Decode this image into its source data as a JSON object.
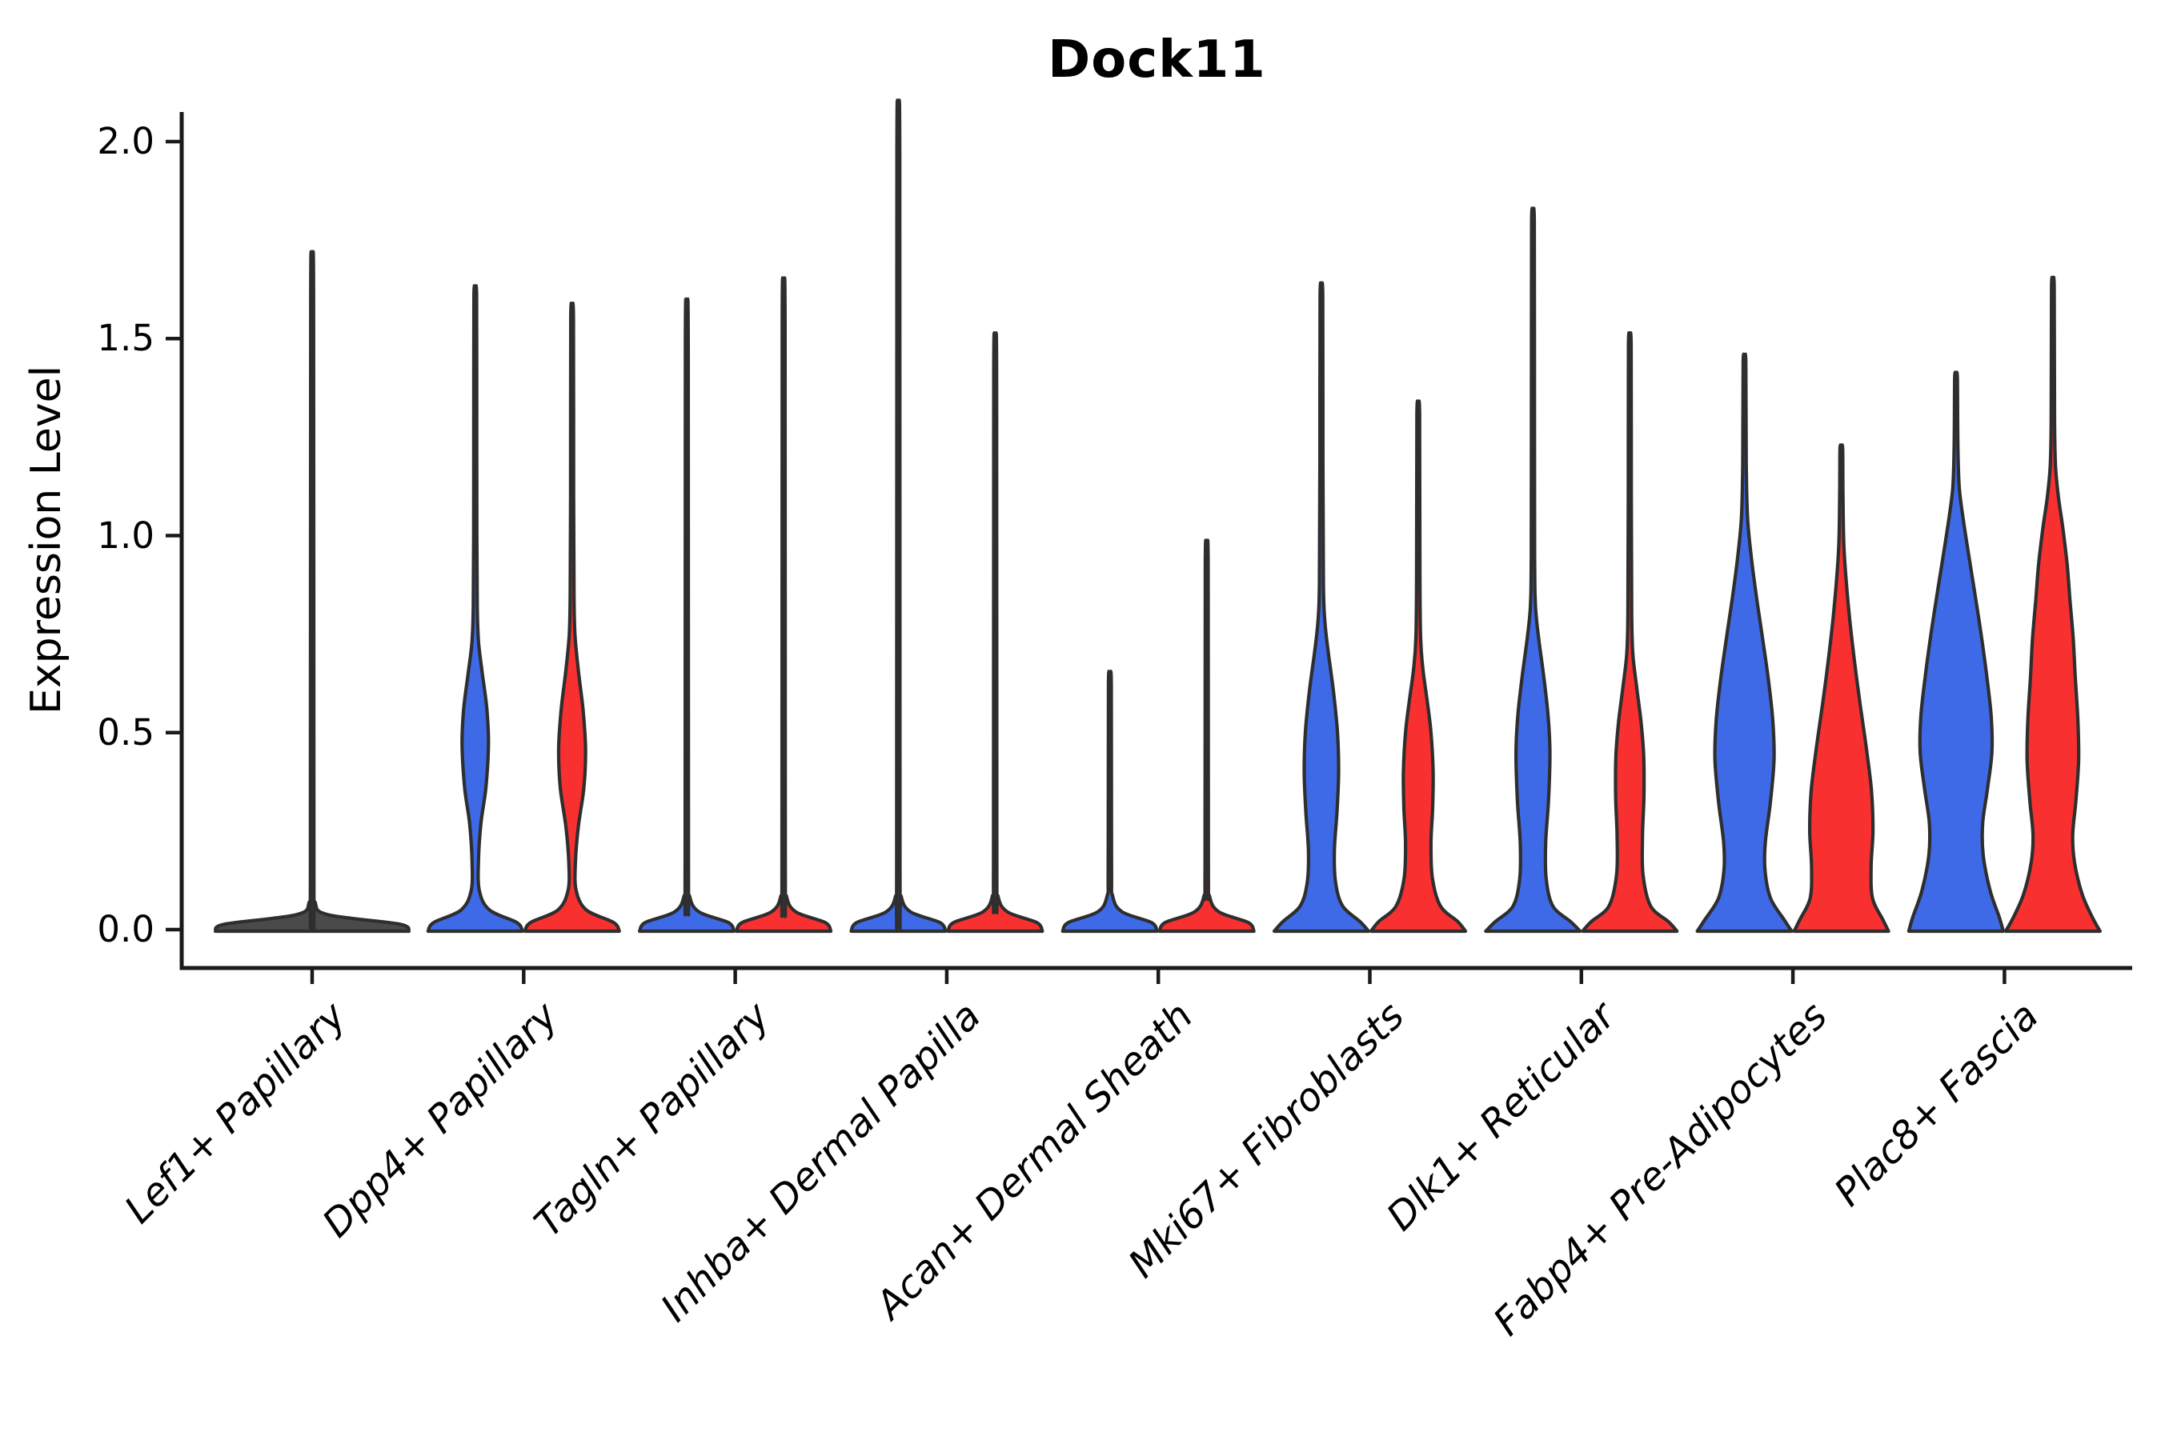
{
  "chart_data": {
    "type": "violin",
    "title": "Dock11",
    "ylabel": "Expression Level",
    "ylim": [
      0,
      2.05
    ],
    "yticks": [
      0.0,
      0.5,
      1.0,
      1.5,
      2.0
    ],
    "ytick_labels": [
      "0.0",
      "0.5",
      "1.0",
      "1.5",
      "2.0"
    ],
    "grid": false,
    "legend": "none",
    "categories": [
      "Lef1+ Papillary",
      "Dpp4+ Papillary",
      "Tagln+ Papillary",
      "Inhba+ Dermal Papilla",
      "Acan+ Dermal Sheath",
      "Mki67+ Fibroblasts",
      "Dlk1+ Reticular",
      "Fabp4+ Pre-Adipocytes",
      "Plac8+ Fascia"
    ],
    "colors": {
      "blue": "#3E6AE8",
      "red": "#F93030",
      "single": "#4a4a4a",
      "outline": "#2E2E2E",
      "axis": "#1a1a1a"
    },
    "violins": [
      {
        "category": "Lef1+ Papillary",
        "violins": [
          {
            "group": "single",
            "max_expression": 1.61,
            "profile": [
              [
                0,
                1.0
              ],
              [
                0.014,
                0.9
              ],
              [
                0.038,
                0.16
              ],
              [
                0.07,
                0.03
              ],
              [
                0.13,
                0.018
              ],
              [
                1.61,
                0.015
              ]
            ]
          }
        ]
      },
      {
        "category": "Dpp4+ Papillary",
        "violins": [
          {
            "group": "blue",
            "max_expression": 1.61,
            "profile": [
              [
                0,
                1.0
              ],
              [
                0.018,
                0.88
              ],
              [
                0.05,
                0.3
              ],
              [
                0.1,
                0.085
              ],
              [
                0.18,
                0.07
              ],
              [
                0.27,
                0.12
              ],
              [
                0.36,
                0.225
              ],
              [
                0.47,
                0.28
              ],
              [
                0.56,
                0.245
              ],
              [
                0.65,
                0.15
              ],
              [
                0.73,
                0.07
              ],
              [
                0.82,
                0.042
              ],
              [
                1.0,
                0.034
              ],
              [
                1.3,
                0.032
              ],
              [
                1.61,
                0.028
              ]
            ]
          },
          {
            "group": "red",
            "max_expression": 1.555,
            "profile": [
              [
                0,
                1.0
              ],
              [
                0.018,
                0.88
              ],
              [
                0.05,
                0.3
              ],
              [
                0.1,
                0.085
              ],
              [
                0.17,
                0.07
              ],
              [
                0.26,
                0.13
              ],
              [
                0.36,
                0.25
              ],
              [
                0.46,
                0.285
              ],
              [
                0.56,
                0.23
              ],
              [
                0.66,
                0.13
              ],
              [
                0.75,
                0.06
              ],
              [
                0.85,
                0.04
              ],
              [
                1.1,
                0.033
              ],
              [
                1.555,
                0.028
              ]
            ]
          }
        ]
      },
      {
        "category": "Tagln+ Papillary",
        "violins": [
          {
            "group": "blue",
            "max_expression": 1.5,
            "profile": [
              [
                0,
                1.0
              ],
              [
                0.018,
                0.88
              ],
              [
                0.045,
                0.26
              ],
              [
                0.085,
                0.06
              ],
              [
                0.16,
                0.036
              ],
              [
                1.5,
                0.03
              ]
            ]
          },
          {
            "group": "red",
            "max_expression": 1.55,
            "profile": [
              [
                0,
                1.0
              ],
              [
                0.018,
                0.88
              ],
              [
                0.045,
                0.26
              ],
              [
                0.085,
                0.06
              ],
              [
                0.16,
                0.036
              ],
              [
                1.55,
                0.03
              ]
            ]
          }
        ]
      },
      {
        "category": "Inhba+ Dermal Papilla",
        "violins": [
          {
            "group": "blue",
            "max_expression": 1.97,
            "profile": [
              [
                0,
                1.0
              ],
              [
                0.018,
                0.88
              ],
              [
                0.045,
                0.26
              ],
              [
                0.085,
                0.06
              ],
              [
                0.16,
                0.036
              ],
              [
                1.97,
                0.03
              ]
            ]
          },
          {
            "group": "red",
            "max_expression": 1.42,
            "profile": [
              [
                0,
                1.0
              ],
              [
                0.018,
                0.88
              ],
              [
                0.045,
                0.26
              ],
              [
                0.085,
                0.06
              ],
              [
                0.16,
                0.036
              ],
              [
                1.42,
                0.03
              ]
            ]
          }
        ]
      },
      {
        "category": "Acan+ Dermal Sheath",
        "violins": [
          {
            "group": "blue",
            "max_expression": 0.62,
            "profile": [
              [
                0,
                1.0
              ],
              [
                0.018,
                0.88
              ],
              [
                0.045,
                0.26
              ],
              [
                0.085,
                0.06
              ],
              [
                0.16,
                0.036
              ],
              [
                0.62,
                0.03
              ]
            ]
          },
          {
            "group": "red",
            "max_expression": 0.93,
            "profile": [
              [
                0,
                1.0
              ],
              [
                0.018,
                0.88
              ],
              [
                0.045,
                0.26
              ],
              [
                0.085,
                0.06
              ],
              [
                0.16,
                0.036
              ],
              [
                0.93,
                0.03
              ]
            ]
          }
        ]
      },
      {
        "category": "Mki67+ Fibroblasts",
        "violins": [
          {
            "group": "blue",
            "max_expression": 1.61,
            "profile": [
              [
                0,
                1.0
              ],
              [
                0.02,
                0.82
              ],
              [
                0.06,
                0.45
              ],
              [
                0.12,
                0.3
              ],
              [
                0.2,
                0.275
              ],
              [
                0.3,
                0.33
              ],
              [
                0.4,
                0.365
              ],
              [
                0.5,
                0.34
              ],
              [
                0.6,
                0.26
              ],
              [
                0.7,
                0.15
              ],
              [
                0.78,
                0.075
              ],
              [
                0.88,
                0.042
              ],
              [
                1.2,
                0.033
              ],
              [
                1.61,
                0.028
              ]
            ]
          },
          {
            "group": "red",
            "max_expression": 1.31,
            "profile": [
              [
                0,
                1.0
              ],
              [
                0.02,
                0.84
              ],
              [
                0.06,
                0.47
              ],
              [
                0.13,
                0.3
              ],
              [
                0.22,
                0.27
              ],
              [
                0.31,
                0.305
              ],
              [
                0.4,
                0.315
              ],
              [
                0.5,
                0.27
              ],
              [
                0.58,
                0.19
              ],
              [
                0.66,
                0.1
              ],
              [
                0.74,
                0.05
              ],
              [
                0.9,
                0.035
              ],
              [
                1.31,
                0.028
              ]
            ]
          }
        ]
      },
      {
        "category": "Dlk1+ Reticular",
        "violins": [
          {
            "group": "blue",
            "max_expression": 1.8,
            "profile": [
              [
                0,
                1.0
              ],
              [
                0.02,
                0.8
              ],
              [
                0.06,
                0.42
              ],
              [
                0.13,
                0.28
              ],
              [
                0.22,
                0.27
              ],
              [
                0.33,
                0.33
              ],
              [
                0.45,
                0.36
              ],
              [
                0.55,
                0.315
              ],
              [
                0.65,
                0.22
              ],
              [
                0.74,
                0.12
              ],
              [
                0.82,
                0.055
              ],
              [
                0.95,
                0.036
              ],
              [
                1.4,
                0.032
              ],
              [
                1.8,
                0.028
              ]
            ]
          },
          {
            "group": "red",
            "max_expression": 1.485,
            "profile": [
              [
                0,
                1.0
              ],
              [
                0.02,
                0.82
              ],
              [
                0.06,
                0.44
              ],
              [
                0.14,
                0.28
              ],
              [
                0.24,
                0.27
              ],
              [
                0.34,
                0.3
              ],
              [
                0.44,
                0.295
              ],
              [
                0.53,
                0.235
              ],
              [
                0.62,
                0.14
              ],
              [
                0.7,
                0.065
              ],
              [
                0.8,
                0.04
              ],
              [
                1.1,
                0.033
              ],
              [
                1.485,
                0.028
              ]
            ]
          }
        ]
      },
      {
        "category": "Fabp4+ Pre-Adipocytes",
        "violins": [
          {
            "group": "blue",
            "max_expression": 1.44,
            "profile": [
              [
                0,
                1.0
              ],
              [
                0.025,
                0.84
              ],
              [
                0.08,
                0.55
              ],
              [
                0.15,
                0.435
              ],
              [
                0.22,
                0.44
              ],
              [
                0.32,
                0.545
              ],
              [
                0.43,
                0.625
              ],
              [
                0.53,
                0.6
              ],
              [
                0.64,
                0.5
              ],
              [
                0.75,
                0.37
              ],
              [
                0.86,
                0.235
              ],
              [
                0.96,
                0.13
              ],
              [
                1.05,
                0.062
              ],
              [
                1.18,
                0.038
              ],
              [
                1.44,
                0.028
              ]
            ]
          },
          {
            "group": "red",
            "max_expression": 1.22,
            "profile": [
              [
                0,
                1.0
              ],
              [
                0.025,
                0.88
              ],
              [
                0.08,
                0.66
              ],
              [
                0.16,
                0.63
              ],
              [
                0.25,
                0.67
              ],
              [
                0.35,
                0.64
              ],
              [
                0.46,
                0.53
              ],
              [
                0.57,
                0.4
              ],
              [
                0.68,
                0.28
              ],
              [
                0.79,
                0.175
              ],
              [
                0.89,
                0.1
              ],
              [
                0.98,
                0.052
              ],
              [
                1.1,
                0.035
              ],
              [
                1.22,
                0.028
              ]
            ]
          }
        ]
      },
      {
        "category": "Plac8+ Fascia",
        "violins": [
          {
            "group": "blue",
            "max_expression": 1.4,
            "profile": [
              [
                0,
                1.0
              ],
              [
                0.03,
                0.92
              ],
              [
                0.1,
                0.72
              ],
              [
                0.19,
                0.575
              ],
              [
                0.27,
                0.565
              ],
              [
                0.36,
                0.67
              ],
              [
                0.45,
                0.76
              ],
              [
                0.54,
                0.745
              ],
              [
                0.64,
                0.655
              ],
              [
                0.75,
                0.53
              ],
              [
                0.86,
                0.39
              ],
              [
                0.95,
                0.27
              ],
              [
                1.04,
                0.155
              ],
              [
                1.12,
                0.07
              ],
              [
                1.22,
                0.04
              ],
              [
                1.4,
                0.028
              ]
            ]
          },
          {
            "group": "red",
            "max_expression": 1.63,
            "profile": [
              [
                0,
                1.0
              ],
              [
                0.03,
                0.84
              ],
              [
                0.09,
                0.62
              ],
              [
                0.17,
                0.46
              ],
              [
                0.24,
                0.42
              ],
              [
                0.33,
                0.49
              ],
              [
                0.43,
                0.545
              ],
              [
                0.53,
                0.53
              ],
              [
                0.64,
                0.475
              ],
              [
                0.74,
                0.43
              ],
              [
                0.84,
                0.36
              ],
              [
                0.93,
                0.3
              ],
              [
                1.02,
                0.21
              ],
              [
                1.1,
                0.115
              ],
              [
                1.18,
                0.055
              ],
              [
                1.3,
                0.035
              ],
              [
                1.63,
                0.028
              ]
            ]
          }
        ]
      }
    ]
  }
}
